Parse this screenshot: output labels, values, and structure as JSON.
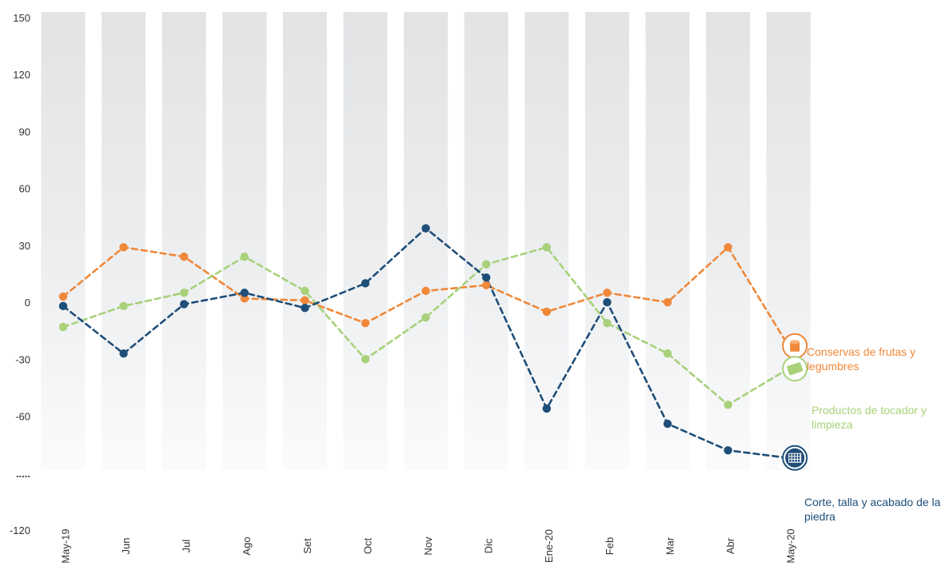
{
  "chart_data": {
    "type": "line",
    "categories": [
      "May-19",
      "Jun",
      "Jul",
      "Ago",
      "Set",
      "Oct",
      "Nov",
      "Dic",
      "Ene-20",
      "Feb",
      "Mar",
      "Abr",
      "May-20"
    ],
    "y_ticks": [
      "150",
      "120",
      "90",
      "60",
      "30",
      "0",
      "-30",
      "-60",
      ".....",
      "-120"
    ],
    "ylim": [
      -120,
      150
    ],
    "grid": false,
    "series": [
      {
        "name": "Conservas de frutas y legumbres",
        "color": "#f0883a",
        "icon": "can-icon",
        "values": [
          3,
          29,
          24,
          2,
          1,
          -11,
          6,
          9,
          -5,
          5,
          0,
          29,
          -23
        ]
      },
      {
        "name": "Productos de tocador y limpieza",
        "color": "#a8d17a",
        "icon": "soap-icon",
        "values": [
          -13,
          -2,
          5,
          24,
          6,
          -30,
          -8,
          20,
          29,
          -11,
          -27,
          -54,
          -35
        ]
      },
      {
        "name": "Corte, talla y acabado de la piedra",
        "color": "#1f4e79",
        "icon": "stone-icon",
        "values": [
          -2,
          -27,
          -1,
          5,
          -3,
          10,
          39,
          13,
          -56,
          0,
          -64,
          -78,
          -82
        ]
      }
    ]
  }
}
